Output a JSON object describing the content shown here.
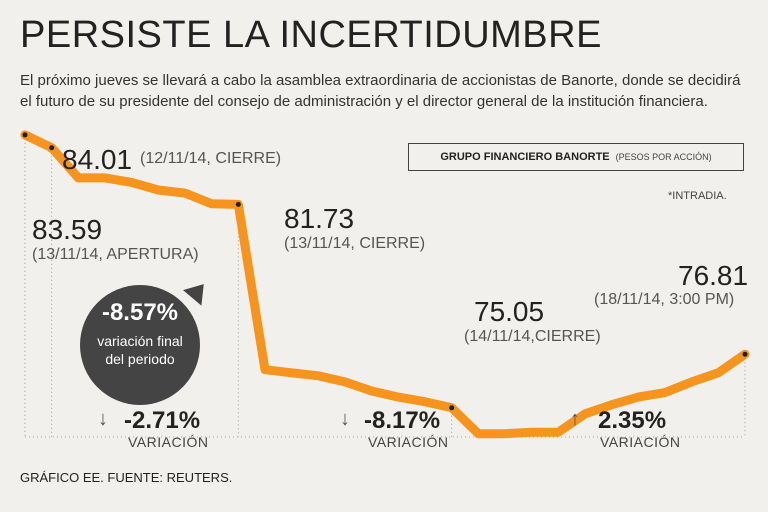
{
  "title": "PERSISTE LA INCERTIDUMBRE",
  "intro": "El próximo jueves se llevará a cabo la asamblea extraordinaria de accionistas de Banorte, donde se decidirá el futuro de su presidente del consejo de administración y el director general de la institución financiera.",
  "legend": {
    "name": "GRUPO FINANCIERO BANORTE",
    "unit": "(PESOS POR ACCIÓN)"
  },
  "intraday_note": "*INTRADIA.",
  "annotations": {
    "a1": {
      "value": "84.01",
      "desc": "(12/11/14, CIERRE)"
    },
    "a2": {
      "value": "83.59",
      "desc": "(13/11/14, APERTURA)"
    },
    "a3": {
      "value": "81.73",
      "desc": "(13/11/14, CIERRE)"
    },
    "a4": {
      "value": "75.05",
      "desc": "(14/11/14,CIERRE)"
    },
    "a5": {
      "value": "76.81",
      "desc": "(18/11/14, 3:00 PM)"
    }
  },
  "bubble": {
    "pct": "-8.57%",
    "text": "variación final del periodo"
  },
  "variations": [
    {
      "arrow": "↓",
      "pct": "-2.71%",
      "label": "VARIACIÓN"
    },
    {
      "arrow": "↓",
      "pct": "-8.17%",
      "label": "VARIACIÓN"
    },
    {
      "arrow": "↑",
      "pct": "2.35%",
      "label": "VARIACIÓN"
    }
  ],
  "footer": "GRÁFICO EE. FUENTE: REUTERS.",
  "colors": {
    "line": "#f7941d",
    "bubble": "#444444"
  },
  "chart_data": {
    "type": "line",
    "title": "GRUPO FINANCIERO BANORTE (PESOS POR ACCIÓN)",
    "values": [
      84.01,
      83.59,
      82.6,
      82.6,
      82.45,
      82.2,
      82.1,
      81.75,
      81.73,
      76.3,
      76.2,
      76.1,
      75.9,
      75.6,
      75.4,
      75.25,
      75.05,
      74.2,
      74.2,
      74.25,
      74.25,
      74.85,
      75.15,
      75.4,
      75.55,
      75.9,
      76.2,
      76.81
    ],
    "ylim": [
      73.5,
      84.5
    ],
    "segments": [
      {
        "period": "12/11/14 - 13/11/14",
        "variation": -2.71
      },
      {
        "period": "13/11/14 - 14/11/14",
        "variation": -8.17
      },
      {
        "period": "14/11/14 - 18/11/14",
        "variation": 2.35
      }
    ],
    "key_points": [
      {
        "index": 0,
        "value": 84.01,
        "label": "12/11/14, CIERRE"
      },
      {
        "index": 1,
        "value": 83.59,
        "label": "13/11/14, APERTURA"
      },
      {
        "index": 8,
        "value": 81.73,
        "label": "13/11/14, CIERRE"
      },
      {
        "index": 16,
        "value": 75.05,
        "label": "14/11/14,CIERRE"
      },
      {
        "index": 27,
        "value": 76.81,
        "label": "18/11/14, 3:00 PM"
      }
    ]
  }
}
